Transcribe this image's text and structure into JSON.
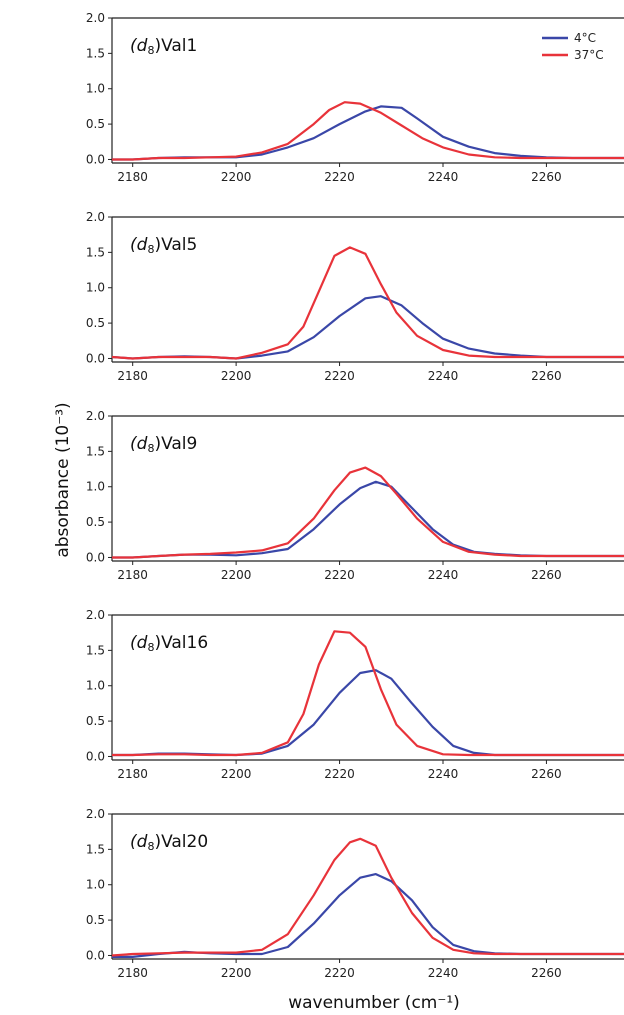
{
  "figure": {
    "ylabel": "absorbance (10⁻³)",
    "xlabel": "wavenumber (cm⁻¹)"
  },
  "legend": [
    {
      "label": "4°C",
      "color": "#3a47a8"
    },
    {
      "label": "37°C",
      "color": "#e8333a"
    }
  ],
  "chart_data": [
    {
      "type": "line",
      "panel_label_prefix": "(d",
      "panel_label_sub": "8",
      "panel_label_suffix": ")Val1",
      "xlim": [
        2176,
        2275
      ],
      "ylim": [
        -0.05,
        2.0
      ],
      "xticks": [
        2180,
        2200,
        2220,
        2240,
        2260
      ],
      "yticks": [
        "0.0",
        "0.5",
        "1.0",
        "1.5",
        "2.0"
      ],
      "series": [
        {
          "name": "4°C",
          "x": [
            2176,
            2180,
            2185,
            2190,
            2195,
            2200,
            2205,
            2210,
            2215,
            2220,
            2225,
            2228,
            2232,
            2235,
            2240,
            2245,
            2250,
            2255,
            2260,
            2265,
            2270,
            2275
          ],
          "y": [
            0.0,
            0.0,
            0.02,
            0.03,
            0.03,
            0.03,
            0.07,
            0.17,
            0.3,
            0.5,
            0.68,
            0.75,
            0.73,
            0.58,
            0.32,
            0.18,
            0.09,
            0.05,
            0.03,
            0.02,
            0.02,
            0.02
          ]
        },
        {
          "name": "37°C",
          "x": [
            2176,
            2180,
            2185,
            2190,
            2195,
            2200,
            2205,
            2210,
            2215,
            2218,
            2221,
            2224,
            2228,
            2232,
            2236,
            2240,
            2245,
            2250,
            2255,
            2260,
            2265,
            2270,
            2275
          ],
          "y": [
            0.0,
            0.0,
            0.02,
            0.02,
            0.03,
            0.04,
            0.1,
            0.22,
            0.5,
            0.7,
            0.81,
            0.79,
            0.66,
            0.48,
            0.3,
            0.17,
            0.07,
            0.03,
            0.02,
            0.02,
            0.02,
            0.02,
            0.02
          ]
        }
      ]
    },
    {
      "type": "line",
      "panel_label_prefix": "(d",
      "panel_label_sub": "8",
      "panel_label_suffix": ")Val5",
      "xlim": [
        2176,
        2275
      ],
      "ylim": [
        -0.05,
        2.0
      ],
      "xticks": [
        2180,
        2200,
        2220,
        2240,
        2260
      ],
      "yticks": [
        "0.0",
        "0.5",
        "1.0",
        "1.5",
        "2.0"
      ],
      "series": [
        {
          "name": "4°C",
          "x": [
            2176,
            2180,
            2185,
            2190,
            2195,
            2200,
            2205,
            2210,
            2215,
            2220,
            2225,
            2228,
            2232,
            2236,
            2240,
            2245,
            2250,
            2255,
            2260,
            2265,
            2270,
            2275
          ],
          "y": [
            0.02,
            0.0,
            0.02,
            0.03,
            0.02,
            0.0,
            0.04,
            0.1,
            0.3,
            0.6,
            0.85,
            0.88,
            0.75,
            0.5,
            0.28,
            0.14,
            0.07,
            0.04,
            0.02,
            0.02,
            0.02,
            0.02
          ]
        },
        {
          "name": "37°C",
          "x": [
            2176,
            2180,
            2185,
            2190,
            2195,
            2200,
            2205,
            2210,
            2213,
            2216,
            2219,
            2222,
            2225,
            2228,
            2231,
            2235,
            2240,
            2245,
            2250,
            2255,
            2260,
            2270,
            2275
          ],
          "y": [
            0.02,
            0.0,
            0.02,
            0.02,
            0.02,
            0.0,
            0.08,
            0.2,
            0.45,
            0.95,
            1.45,
            1.57,
            1.48,
            1.05,
            0.65,
            0.32,
            0.12,
            0.04,
            0.02,
            0.02,
            0.02,
            0.02,
            0.02
          ]
        }
      ]
    },
    {
      "type": "line",
      "panel_label_prefix": "(d",
      "panel_label_sub": "8",
      "panel_label_suffix": ")Val9",
      "xlim": [
        2176,
        2275
      ],
      "ylim": [
        -0.05,
        2.0
      ],
      "xticks": [
        2180,
        2200,
        2220,
        2240,
        2260
      ],
      "yticks": [
        "0.0",
        "0.5",
        "1.0",
        "1.5",
        "2.0"
      ],
      "series": [
        {
          "name": "4°C",
          "x": [
            2176,
            2180,
            2185,
            2190,
            2195,
            2200,
            2205,
            2210,
            2215,
            2220,
            2224,
            2227,
            2230,
            2234,
            2238,
            2242,
            2246,
            2250,
            2255,
            2260,
            2265,
            2270,
            2275
          ],
          "y": [
            0.0,
            0.0,
            0.02,
            0.04,
            0.04,
            0.03,
            0.06,
            0.12,
            0.4,
            0.75,
            0.98,
            1.07,
            1.0,
            0.7,
            0.4,
            0.18,
            0.08,
            0.05,
            0.03,
            0.02,
            0.02,
            0.02,
            0.02
          ]
        },
        {
          "name": "37°C",
          "x": [
            2176,
            2180,
            2185,
            2190,
            2195,
            2200,
            2205,
            2210,
            2215,
            2219,
            2222,
            2225,
            2228,
            2231,
            2235,
            2240,
            2245,
            2250,
            2255,
            2260,
            2265,
            2270,
            2275
          ],
          "y": [
            0.0,
            0.0,
            0.02,
            0.04,
            0.05,
            0.07,
            0.1,
            0.2,
            0.55,
            0.95,
            1.2,
            1.27,
            1.15,
            0.9,
            0.55,
            0.22,
            0.08,
            0.04,
            0.02,
            0.02,
            0.02,
            0.02,
            0.02
          ]
        }
      ]
    },
    {
      "type": "line",
      "panel_label_prefix": "(d",
      "panel_label_sub": "8",
      "panel_label_suffix": ")Val16",
      "xlim": [
        2176,
        2275
      ],
      "ylim": [
        -0.05,
        2.0
      ],
      "xticks": [
        2180,
        2200,
        2220,
        2240,
        2260
      ],
      "yticks": [
        "0.0",
        "0.5",
        "1.0",
        "1.5",
        "2.0"
      ],
      "series": [
        {
          "name": "4°C",
          "x": [
            2176,
            2180,
            2185,
            2190,
            2195,
            2200,
            2205,
            2210,
            2215,
            2220,
            2224,
            2227,
            2230,
            2234,
            2238,
            2242,
            2246,
            2250,
            2255,
            2260,
            2265,
            2270,
            2275
          ],
          "y": [
            0.02,
            0.02,
            0.04,
            0.04,
            0.03,
            0.02,
            0.04,
            0.15,
            0.45,
            0.9,
            1.18,
            1.22,
            1.1,
            0.75,
            0.42,
            0.15,
            0.05,
            0.02,
            0.02,
            0.02,
            0.02,
            0.02,
            0.02
          ]
        },
        {
          "name": "37°C",
          "x": [
            2176,
            2180,
            2185,
            2190,
            2195,
            2200,
            2205,
            2210,
            2213,
            2216,
            2219,
            2222,
            2225,
            2228,
            2231,
            2235,
            2240,
            2245,
            2250,
            2255,
            2260,
            2270,
            2275
          ],
          "y": [
            0.02,
            0.02,
            0.03,
            0.03,
            0.02,
            0.02,
            0.05,
            0.2,
            0.6,
            1.3,
            1.77,
            1.75,
            1.55,
            0.95,
            0.45,
            0.15,
            0.03,
            0.02,
            0.02,
            0.02,
            0.02,
            0.02,
            0.02
          ]
        }
      ]
    },
    {
      "type": "line",
      "panel_label_prefix": "(d",
      "panel_label_sub": "8",
      "panel_label_suffix": ")Val20",
      "xlim": [
        2176,
        2275
      ],
      "ylim": [
        -0.05,
        2.0
      ],
      "xticks": [
        2180,
        2200,
        2220,
        2240,
        2260
      ],
      "yticks": [
        "0.0",
        "0.5",
        "1.0",
        "1.5",
        "2.0"
      ],
      "series": [
        {
          "name": "4°C",
          "x": [
            2176,
            2180,
            2185,
            2190,
            2195,
            2200,
            2205,
            2210,
            2215,
            2220,
            2224,
            2227,
            2230,
            2234,
            2238,
            2242,
            2246,
            2250,
            2255,
            2260,
            2265,
            2270,
            2275
          ],
          "y": [
            -0.02,
            -0.02,
            0.02,
            0.05,
            0.03,
            0.02,
            0.02,
            0.12,
            0.45,
            0.85,
            1.1,
            1.15,
            1.05,
            0.78,
            0.4,
            0.15,
            0.06,
            0.03,
            0.02,
            0.02,
            0.02,
            0.02,
            0.02
          ]
        },
        {
          "name": "37°C",
          "x": [
            2176,
            2180,
            2185,
            2190,
            2195,
            2200,
            2205,
            2210,
            2215,
            2219,
            2222,
            2224,
            2227,
            2230,
            2234,
            2238,
            2242,
            2246,
            2250,
            2255,
            2260,
            2270,
            2275
          ],
          "y": [
            0.0,
            0.02,
            0.03,
            0.04,
            0.04,
            0.04,
            0.08,
            0.3,
            0.85,
            1.35,
            1.6,
            1.65,
            1.55,
            1.1,
            0.6,
            0.25,
            0.08,
            0.03,
            0.02,
            0.02,
            0.02,
            0.02,
            0.02
          ]
        }
      ]
    }
  ]
}
